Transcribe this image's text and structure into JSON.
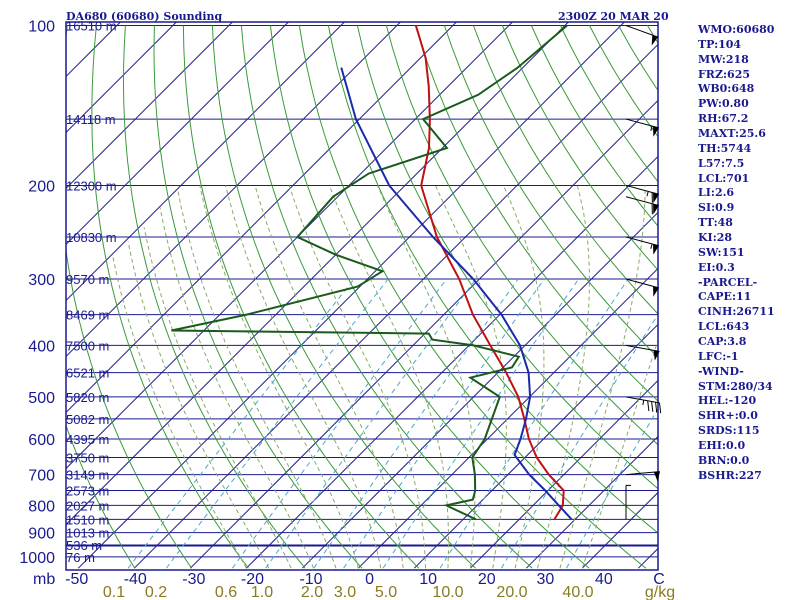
{
  "header": {
    "title": "DA680 (60680) Sounding",
    "timestamp": "2300Z 20 MAR 20"
  },
  "colors": {
    "frame": "#1a1a90",
    "isobar": "#1a1a90",
    "isotherm": "#1a1a90",
    "dry_adiabat": "#3a9a3a",
    "moist_adiabat": "#88aa66",
    "mixing_ratio": "#4aa8c8",
    "temperature": "#c01010",
    "dewpoint": "#1a5a1a",
    "parcel": "#1a2aaa",
    "axis_text": "#1a1a90",
    "mixing_text": "#8a7a20",
    "wind": "#000000"
  },
  "stats": [
    "WMO:60680",
    "TP:104",
    "MW:218",
    "FRZ:625",
    "WB0:648",
    "PW:0.80",
    "RH:67.2",
    "MAXT:25.6",
    "TH:5744",
    "L57:7.5",
    "LCL:701",
    "LI:2.6",
    "SI:0.9",
    "TT:48",
    "KI:28",
    "SW:151",
    "EI:0.3",
    "-PARCEL-",
    "CAPE:11",
    "CINH:26711",
    "LCL:643",
    "CAP:3.8",
    "LFC:-1",
    "-WIND-",
    "STM:280/34",
    "HEL:-120",
    "SHR+:0.0",
    "SRDS:115",
    "EHI:0.0",
    "BRN:0.0",
    "BSHR:227"
  ],
  "chart_data": {
    "type": "skew-t",
    "title": "DA680 (60680) Sounding",
    "timestamp": "2300Z 20 MAR 20",
    "pressure_ticks": [
      {
        "p": 100,
        "label": "100"
      },
      {
        "p": 200,
        "label": "200"
      },
      {
        "p": 300,
        "label": "300"
      },
      {
        "p": 400,
        "label": "400"
      },
      {
        "p": 500,
        "label": "500"
      },
      {
        "p": 600,
        "label": "600"
      },
      {
        "p": 700,
        "label": "700"
      },
      {
        "p": 800,
        "label": "800"
      },
      {
        "p": 900,
        "label": "900"
      },
      {
        "p": 1000,
        "label": "1000"
      }
    ],
    "pressure_unit": "mb",
    "temperature_ticks": [
      {
        "t": -50,
        "label": "-50"
      },
      {
        "t": -40,
        "label": "-40"
      },
      {
        "t": -30,
        "label": "-30"
      },
      {
        "t": -20,
        "label": "-20"
      },
      {
        "t": -10,
        "label": "-10"
      },
      {
        "t": 0,
        "label": "0"
      },
      {
        "t": 10,
        "label": "10"
      },
      {
        "t": 20,
        "label": "20"
      },
      {
        "t": 30,
        "label": "30"
      },
      {
        "t": 40,
        "label": "40"
      }
    ],
    "temperature_unit": "C",
    "mixing_ratio_ticks": [
      {
        "w": 0.1,
        "label": "0.1"
      },
      {
        "w": 0.2,
        "label": "0.2"
      },
      {
        "w": 0.6,
        "label": "0.6"
      },
      {
        "w": 1.0,
        "label": "1.0"
      },
      {
        "w": 2.0,
        "label": "2.0"
      },
      {
        "w": 3.0,
        "label": "3.0"
      },
      {
        "w": 5.0,
        "label": "5.0"
      },
      {
        "w": 10.0,
        "label": "10.0"
      },
      {
        "w": 20.0,
        "label": "20.0"
      },
      {
        "w": 40.0,
        "label": "40.0"
      }
    ],
    "mixing_ratio_unit": "g/kg",
    "height_levels": [
      {
        "p": 100,
        "label": "16510 m"
      },
      {
        "p": 150,
        "label": "14118 m"
      },
      {
        "p": 200,
        "label": "12300 m"
      },
      {
        "p": 250,
        "label": "10830 m"
      },
      {
        "p": 300,
        "label": "9570 m"
      },
      {
        "p": 350,
        "label": "8469 m"
      },
      {
        "p": 400,
        "label": "7500 m"
      },
      {
        "p": 450,
        "label": "6521 m"
      },
      {
        "p": 500,
        "label": "5820 m"
      },
      {
        "p": 550,
        "label": "5082 m"
      },
      {
        "p": 600,
        "label": "4395 m"
      },
      {
        "p": 650,
        "label": "3750 m"
      },
      {
        "p": 700,
        "label": "3149 m"
      },
      {
        "p": 750,
        "label": "2573 m"
      },
      {
        "p": 800,
        "label": "2027 m"
      },
      {
        "p": 850,
        "label": "1510 m"
      },
      {
        "p": 900,
        "label": "1013 m"
      },
      {
        "p": 950,
        "label": "536 m"
      },
      {
        "p": 1000,
        "label": "76 m"
      }
    ],
    "temperature_profile": [
      {
        "p": 850,
        "t": 26.3
      },
      {
        "p": 800,
        "t": 25.3
      },
      {
        "p": 750,
        "t": 22.8
      },
      {
        "p": 700,
        "t": 17.3
      },
      {
        "p": 650,
        "t": 12.1
      },
      {
        "p": 600,
        "t": 7.4
      },
      {
        "p": 550,
        "t": 3.0
      },
      {
        "p": 500,
        "t": -2.0
      },
      {
        "p": 450,
        "t": -8.5
      },
      {
        "p": 400,
        "t": -16.2
      },
      {
        "p": 350,
        "t": -24.8
      },
      {
        "p": 300,
        "t": -33.6
      },
      {
        "p": 250,
        "t": -45.1
      },
      {
        "p": 200,
        "t": -57.1
      },
      {
        "p": 170,
        "t": -62.4
      },
      {
        "p": 150,
        "t": -67.4
      },
      {
        "p": 130,
        "t": -73.5
      },
      {
        "p": 115,
        "t": -79.1
      },
      {
        "p": 100,
        "t": -86.6
      }
    ],
    "dewpoint_profile": [
      {
        "p": 850,
        "t": 12.3
      },
      {
        "p": 800,
        "t": 4.5
      },
      {
        "p": 780,
        "t": 8.2
      },
      {
        "p": 750,
        "t": 7.0
      },
      {
        "p": 700,
        "t": 4.1
      },
      {
        "p": 650,
        "t": 0.6
      },
      {
        "p": 600,
        "t": -0.5
      },
      {
        "p": 500,
        "t": -5.3
      },
      {
        "p": 460,
        "t": -14.0
      },
      {
        "p": 440,
        "t": -8.4
      },
      {
        "p": 420,
        "t": -9.1
      },
      {
        "p": 400,
        "t": -19.2
      },
      {
        "p": 390,
        "t": -27.6
      },
      {
        "p": 380,
        "t": -29.3
      },
      {
        "p": 375,
        "t": -75.8
      },
      {
        "p": 350,
        "t": -65.2
      },
      {
        "p": 310,
        "t": -50.4
      },
      {
        "p": 290,
        "t": -48.7
      },
      {
        "p": 270,
        "t": -60.0
      },
      {
        "p": 250,
        "t": -70.0
      },
      {
        "p": 210,
        "t": -70.8
      },
      {
        "p": 190,
        "t": -68.6
      },
      {
        "p": 170,
        "t": -59.2
      },
      {
        "p": 150,
        "t": -68.6
      },
      {
        "p": 135,
        "t": -63.1
      },
      {
        "p": 120,
        "t": -60.9
      },
      {
        "p": 100,
        "t": -59.6
      }
    ],
    "parcel_profile": [
      {
        "p": 850,
        "t": 29.4
      },
      {
        "p": 800,
        "t": 24.6
      },
      {
        "p": 750,
        "t": 19.5
      },
      {
        "p": 700,
        "t": 13.8
      },
      {
        "p": 643,
        "t": 7.7
      },
      {
        "p": 600,
        "t": 5.9
      },
      {
        "p": 550,
        "t": 3.3
      },
      {
        "p": 500,
        "t": 0.1
      },
      {
        "p": 450,
        "t": -4.5
      },
      {
        "p": 400,
        "t": -10.9
      },
      {
        "p": 350,
        "t": -19.7
      },
      {
        "p": 300,
        "t": -31.1
      },
      {
        "p": 250,
        "t": -45.8
      },
      {
        "p": 200,
        "t": -62.8
      },
      {
        "p": 150,
        "t": -80.6
      },
      {
        "p": 120,
        "t": -92.4
      }
    ],
    "wind_barbs": [
      {
        "p": 100,
        "dir": 290,
        "spd": 50
      },
      {
        "p": 150,
        "dir": 285,
        "spd": 55
      },
      {
        "p": 200,
        "dir": 285,
        "spd": 65
      },
      {
        "p": 210,
        "dir": 285,
        "spd": 60
      },
      {
        "p": 250,
        "dir": 285,
        "spd": 55
      },
      {
        "p": 300,
        "dir": 285,
        "spd": 50
      },
      {
        "p": 400,
        "dir": 280,
        "spd": 50
      },
      {
        "p": 500,
        "dir": 280,
        "spd": 45
      },
      {
        "p": 700,
        "dir": 265,
        "spd": 50
      },
      {
        "p": 850,
        "dir": 180,
        "spd": 5
      }
    ]
  }
}
